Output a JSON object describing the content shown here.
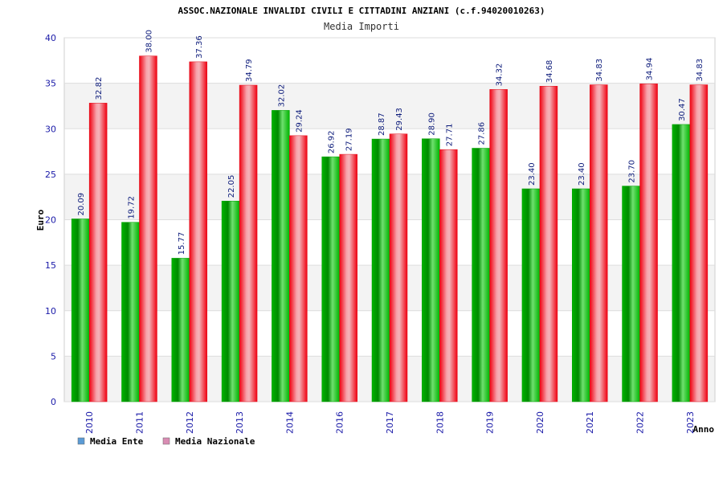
{
  "chart_data": {
    "type": "bar",
    "title": "ASSOC.NAZIONALE INVALIDI CIVILI E CITTADINI ANZIANI (c.f.94020010263)",
    "subtitle": "Media Importi",
    "xlabel": "Anno",
    "ylabel": "Euro",
    "ylim": [
      0,
      40
    ],
    "yticks": [
      0,
      5,
      10,
      15,
      20,
      25,
      30,
      35,
      40
    ],
    "grid": true,
    "legend_position": "bottom-left",
    "categories": [
      "2010",
      "2011",
      "2012",
      "2013",
      "2014",
      "2016",
      "2017",
      "2018",
      "2019",
      "2020",
      "2021",
      "2022",
      "2023"
    ],
    "series": [
      {
        "name": "Media Ente",
        "color": "#00a000",
        "legend_color": "#5b9bd5",
        "values": [
          20.09,
          19.72,
          15.77,
          22.05,
          32.02,
          26.92,
          28.87,
          28.9,
          27.86,
          23.4,
          23.4,
          23.7,
          30.47
        ],
        "labels": [
          "20.09",
          "19.72",
          "15.77",
          "22.05",
          "32.02",
          "26.92",
          "28.87",
          "28.90",
          "27.86",
          "23.40",
          "23.40",
          "23.70",
          "30.47"
        ]
      },
      {
        "name": "Media Nazionale",
        "color": "#e0101c",
        "legend_color": "#d98cb3",
        "values": [
          32.82,
          38.0,
          37.36,
          34.79,
          29.24,
          27.19,
          29.43,
          27.71,
          34.32,
          34.68,
          34.83,
          34.94,
          34.83
        ],
        "labels": [
          "32.82",
          "38.00",
          "37.36",
          "34.79",
          "29.24",
          "27.19",
          "29.43",
          "27.71",
          "34.32",
          "34.68",
          "34.83",
          "34.94",
          "34.83"
        ]
      }
    ]
  }
}
